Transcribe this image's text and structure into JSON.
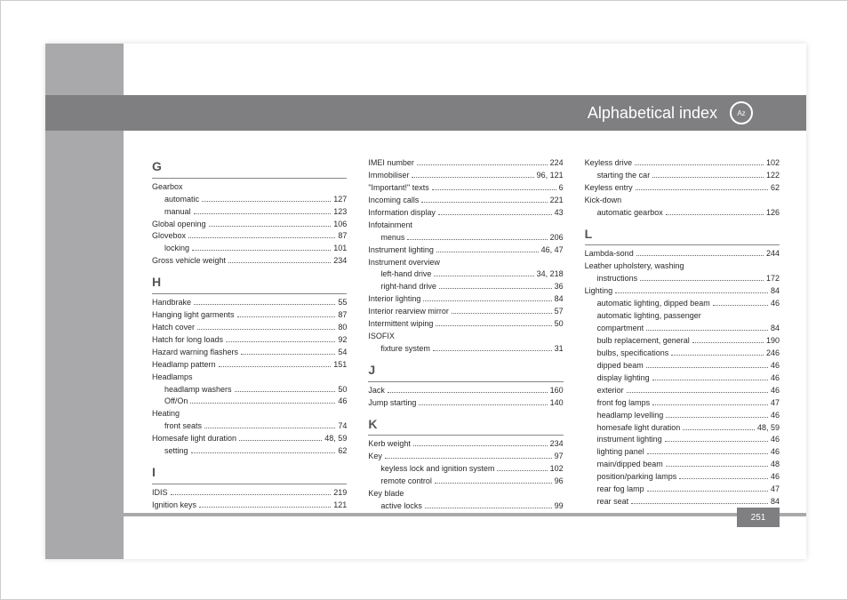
{
  "colors": {
    "page_bg": "#ffffff",
    "stripe": "#a9a9ab",
    "header_bar": "#7f7f82",
    "header_text": "#ffffff",
    "body_text": "#2a2a2a",
    "letter_text": "#555555",
    "rule": "#888888",
    "dot": "#666666"
  },
  "typography": {
    "body_fontsize_pt": 7,
    "letter_fontsize_pt": 11,
    "title_fontsize_pt": 14
  },
  "title": "Alphabetical index",
  "page_number": "251",
  "columns": [
    {
      "sections": [
        {
          "letter": "G",
          "first": true,
          "entries": [
            {
              "label": "Gearbox",
              "page": null
            },
            {
              "label": "automatic",
              "page": "127",
              "sub": true
            },
            {
              "label": "manual",
              "page": "123",
              "sub": true
            },
            {
              "label": "Global opening",
              "page": "106"
            },
            {
              "label": "Glovebox",
              "page": "87"
            },
            {
              "label": "locking",
              "page": "101",
              "sub": true
            },
            {
              "label": "Gross vehicle weight",
              "page": "234"
            }
          ]
        },
        {
          "letter": "H",
          "entries": [
            {
              "label": "Handbrake",
              "page": "55"
            },
            {
              "label": "Hanging light garments",
              "page": "87"
            },
            {
              "label": "Hatch cover",
              "page": "80"
            },
            {
              "label": "Hatch for long loads",
              "page": "92"
            },
            {
              "label": "Hazard warning flashers",
              "page": "54"
            },
            {
              "label": "Headlamp pattern",
              "page": "151"
            },
            {
              "label": "Headlamps",
              "page": null
            },
            {
              "label": "headlamp washers",
              "page": "50",
              "sub": true
            },
            {
              "label": "Off/On",
              "page": "46",
              "sub": true
            },
            {
              "label": "Heating",
              "page": null
            },
            {
              "label": "front seats",
              "page": "74",
              "sub": true
            },
            {
              "label": "Homesafe light duration",
              "page": "48, 59"
            },
            {
              "label": "setting",
              "page": "62",
              "sub": true
            }
          ]
        },
        {
          "letter": "I",
          "entries": [
            {
              "label": "IDIS",
              "page": "219"
            },
            {
              "label": "Ignition keys",
              "page": "121"
            }
          ]
        }
      ]
    },
    {
      "sections": [
        {
          "letter": null,
          "entries": [
            {
              "label": "IMEI number",
              "page": "224"
            },
            {
              "label": "Immobiliser",
              "page": "96, 121"
            },
            {
              "label": "\"Important!\" texts",
              "page": "6"
            },
            {
              "label": "Incoming calls",
              "page": "221"
            },
            {
              "label": "Information display",
              "page": "43"
            },
            {
              "label": "Infotainment",
              "page": null
            },
            {
              "label": "menus",
              "page": "206",
              "sub": true
            },
            {
              "label": "Instrument lighting",
              "page": "46, 47"
            },
            {
              "label": "Instrument overview",
              "page": null
            },
            {
              "label": "left-hand drive",
              "page": "34, 218",
              "sub": true
            },
            {
              "label": "right-hand drive",
              "page": "36",
              "sub": true
            },
            {
              "label": "Interior lighting",
              "page": "84"
            },
            {
              "label": "Interior rearview mirror",
              "page": "57"
            },
            {
              "label": "Intermittent wiping",
              "page": "50"
            },
            {
              "label": "ISOFIX",
              "page": null
            },
            {
              "label": "fixture system",
              "page": "31",
              "sub": true
            }
          ]
        },
        {
          "letter": "J",
          "entries": [
            {
              "label": "Jack",
              "page": "160"
            },
            {
              "label": "Jump starting",
              "page": "140"
            }
          ]
        },
        {
          "letter": "K",
          "entries": [
            {
              "label": "Kerb weight",
              "page": "234"
            },
            {
              "label": "Key",
              "page": "97"
            },
            {
              "label": "keyless lock and ignition system",
              "page": "102",
              "sub": true
            },
            {
              "label": "remote control",
              "page": "96",
              "sub": true
            },
            {
              "label": "Key blade",
              "page": null
            },
            {
              "label": "active locks",
              "page": "99",
              "sub": true
            }
          ]
        }
      ]
    },
    {
      "sections": [
        {
          "letter": null,
          "entries": [
            {
              "label": "Keyless drive",
              "page": "102"
            },
            {
              "label": "starting the car",
              "page": "122",
              "sub": true
            },
            {
              "label": "Keyless entry",
              "page": "62"
            },
            {
              "label": "Kick-down",
              "page": null
            },
            {
              "label": "automatic gearbox",
              "page": "126",
              "sub": true
            }
          ]
        },
        {
          "letter": "L",
          "entries": [
            {
              "label": "Lambda-sond",
              "page": "244"
            },
            {
              "label": "Leather upholstery, washing",
              "page": null
            },
            {
              "label": "instructions",
              "page": "172",
              "sub": true
            },
            {
              "label": "Lighting",
              "page": "84"
            },
            {
              "label": "automatic lighting, dipped beam",
              "page": "46",
              "sub": true
            },
            {
              "label": "automatic lighting, passenger",
              "page": null,
              "sub": true
            },
            {
              "label": "compartment",
              "page": "84",
              "sub": true
            },
            {
              "label": "bulb replacement, general",
              "page": "190",
              "sub": true
            },
            {
              "label": "bulbs, specifications",
              "page": "246",
              "sub": true
            },
            {
              "label": "dipped beam",
              "page": "46",
              "sub": true
            },
            {
              "label": "display lighting",
              "page": "46",
              "sub": true
            },
            {
              "label": "exterior",
              "page": "46",
              "sub": true
            },
            {
              "label": "front fog lamps",
              "page": "47",
              "sub": true
            },
            {
              "label": "headlamp levelling",
              "page": "46",
              "sub": true
            },
            {
              "label": "homesafe light duration",
              "page": "48, 59",
              "sub": true
            },
            {
              "label": "instrument lighting",
              "page": "46",
              "sub": true
            },
            {
              "label": "lighting panel",
              "page": "46",
              "sub": true
            },
            {
              "label": "main/dipped beam",
              "page": "48",
              "sub": true
            },
            {
              "label": "position/parking lamps",
              "page": "46",
              "sub": true
            },
            {
              "label": "rear fog lamp",
              "page": "47",
              "sub": true
            },
            {
              "label": "rear seat",
              "page": "84",
              "sub": true
            }
          ]
        }
      ]
    }
  ]
}
